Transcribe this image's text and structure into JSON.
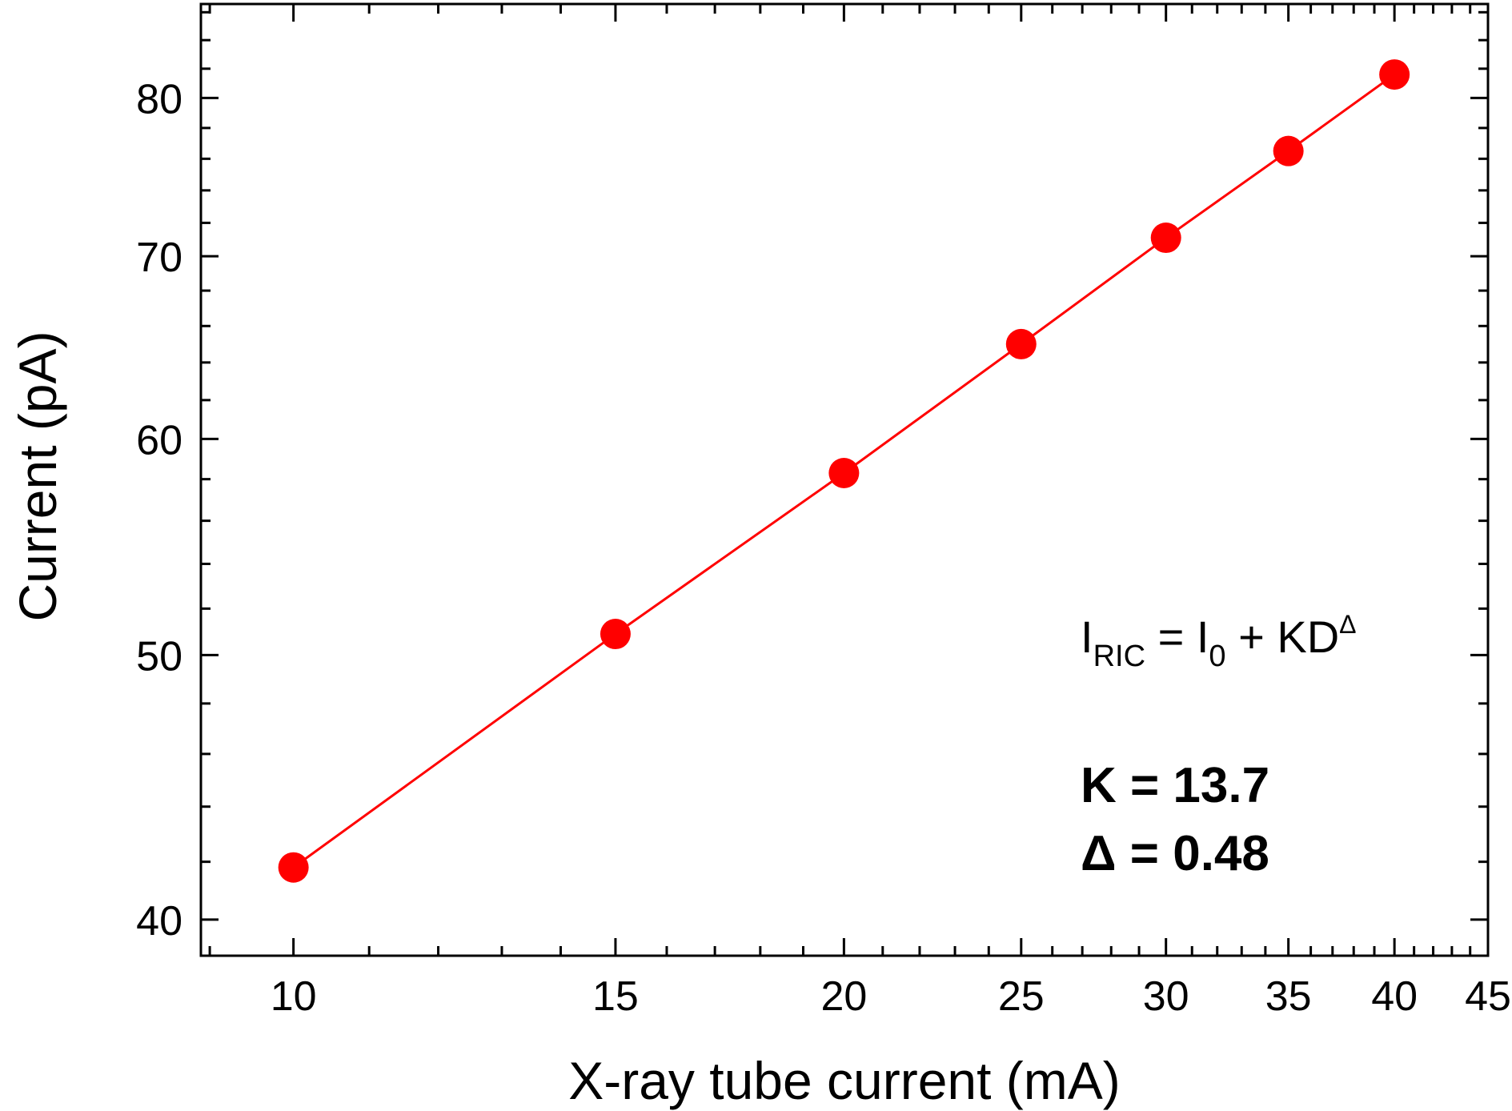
{
  "chart_data": {
    "type": "line",
    "title": "",
    "xlabel": "X-ray tube current (mA)",
    "ylabel": "Current (pA)",
    "xscale": "log",
    "yscale": "log",
    "xlim": [
      8.9,
      45
    ],
    "ylim": [
      38.8,
      86.6
    ],
    "xticks": [
      10,
      15,
      20,
      25,
      30,
      35,
      40,
      45
    ],
    "xtick_labels": [
      "10",
      "15",
      "20",
      "25",
      "30",
      "35",
      "40",
      "45"
    ],
    "yticks": [
      40,
      50,
      60,
      70,
      80
    ],
    "ytick_labels": [
      "40",
      "50",
      "60",
      "70",
      "80"
    ],
    "grid": false,
    "series": [
      {
        "name": "RIC",
        "color": "#ff0000",
        "marker": "circle",
        "x": [
          10,
          15,
          20,
          25,
          30,
          35,
          40
        ],
        "y": [
          41.8,
          50.9,
          58.3,
          65.0,
          71.1,
          76.5,
          81.6
        ]
      }
    ],
    "annotations": {
      "formula": {
        "I": "I",
        "RIC": "RIC",
        "eq": " = ",
        "I0": "I",
        "zero": "0",
        "rest": " + KD",
        "delta_sup": "Δ"
      },
      "k_text": "K = 13.7",
      "delta_text": "Δ = 0.48",
      "delta_color": "#ff0000"
    }
  }
}
